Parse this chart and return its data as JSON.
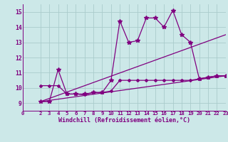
{
  "bg_color": "#cce8e8",
  "grid_color": "#aacccc",
  "line_color": "#800080",
  "xlabel": "Windchill (Refroidissement éolien,°C)",
  "xlim": [
    0,
    23
  ],
  "ylim": [
    8.5,
    15.5
  ],
  "yticks": [
    9,
    10,
    11,
    12,
    13,
    14,
    15
  ],
  "xticks": [
    0,
    2,
    3,
    4,
    5,
    6,
    7,
    8,
    9,
    10,
    11,
    12,
    13,
    14,
    15,
    16,
    17,
    18,
    19,
    20,
    21,
    22,
    23
  ],
  "xtick_labels": [
    "0",
    "2",
    "3",
    "4",
    "5",
    "6",
    "7",
    "8",
    "9",
    "10",
    "11",
    "12",
    "13",
    "14",
    "15",
    "16",
    "17",
    "18",
    "19",
    "20",
    "21",
    "22",
    "23"
  ],
  "series": [
    {
      "x": [
        2,
        3,
        4,
        5,
        6,
        7,
        8,
        9,
        10,
        11,
        12,
        13,
        14,
        15,
        16,
        17,
        18,
        19,
        20,
        21,
        22,
        23
      ],
      "y": [
        9.1,
        9.1,
        11.2,
        9.6,
        9.6,
        9.6,
        9.7,
        9.7,
        10.5,
        14.4,
        13.0,
        13.1,
        14.6,
        14.6,
        14.0,
        15.1,
        13.5,
        13.0,
        10.6,
        10.7,
        10.8,
        10.8
      ],
      "marker": "*",
      "markersize": 4,
      "lw": 0.9
    },
    {
      "x": [
        2,
        23
      ],
      "y": [
        9.1,
        13.5
      ],
      "marker": "None",
      "markersize": 0,
      "lw": 0.9
    },
    {
      "x": [
        2,
        23
      ],
      "y": [
        9.1,
        10.8
      ],
      "marker": "None",
      "markersize": 0,
      "lw": 0.9
    },
    {
      "x": [
        2,
        3,
        4,
        5,
        6,
        7,
        8,
        9,
        10,
        11,
        12,
        13,
        14,
        15,
        16,
        17,
        18,
        19,
        20,
        21,
        22,
        23
      ],
      "y": [
        10.15,
        10.15,
        10.15,
        9.6,
        9.6,
        9.55,
        9.7,
        9.7,
        9.8,
        10.5,
        10.5,
        10.5,
        10.5,
        10.5,
        10.5,
        10.5,
        10.5,
        10.5,
        10.6,
        10.7,
        10.8,
        10.8
      ],
      "marker": "D",
      "markersize": 2,
      "lw": 0.9
    }
  ]
}
